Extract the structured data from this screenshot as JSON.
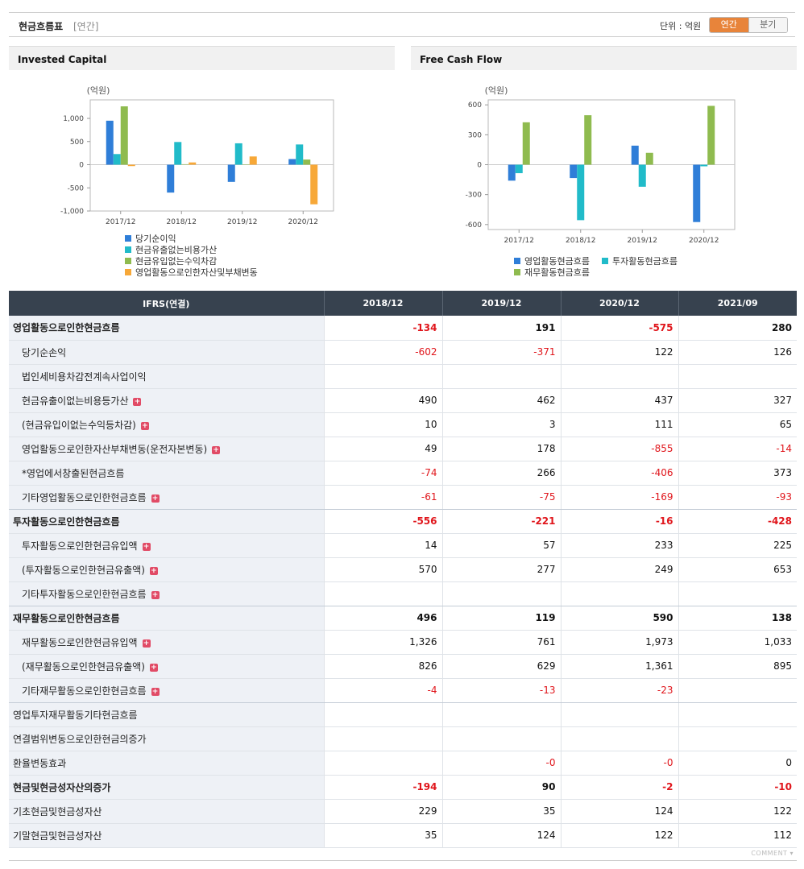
{
  "header": {
    "title": "현금흐름표",
    "period": "[연간]",
    "unit": "단위 : 억원",
    "toggle_annual": "연간",
    "toggle_quarter": "분기"
  },
  "charts": {
    "invested": {
      "heading": "Invested Capital"
    },
    "fcf": {
      "heading": "Free Cash Flow"
    }
  },
  "chart_data": [
    {
      "type": "bar",
      "title": "Invested Capital",
      "ylabel": "(억원)",
      "categories": [
        "2017/12",
        "2018/12",
        "2019/12",
        "2020/12"
      ],
      "yticks": [
        1000,
        500,
        0,
        -500,
        -1000
      ],
      "ytick_labels": [
        "1,000",
        "500",
        "0",
        "-500",
        "-1,000"
      ],
      "ylim": [
        -1000,
        1400
      ],
      "grid": false,
      "legend": "bottom",
      "series": [
        {
          "name": "당기순이익",
          "color": "#2f7ed8",
          "values": [
            950,
            -602,
            -371,
            122
          ]
        },
        {
          "name": "현금유출없는비용가산",
          "color": "#21bbc9",
          "values": [
            230,
            490,
            462,
            437
          ]
        },
        {
          "name": "현금유입없는수익차감",
          "color": "#8fbb4f",
          "values": [
            1260,
            10,
            3,
            111
          ]
        },
        {
          "name": "영업활동으로인한자산및부채변동",
          "color": "#f7a838",
          "values": [
            -30,
            49,
            178,
            -855
          ]
        }
      ]
    },
    {
      "type": "bar",
      "title": "Free Cash Flow",
      "ylabel": "(억원)",
      "categories": [
        "2017/12",
        "2018/12",
        "2019/12",
        "2020/12"
      ],
      "yticks": [
        600,
        300,
        0,
        -300,
        -600
      ],
      "ytick_labels": [
        "600",
        "300",
        "0",
        "-300",
        "-600"
      ],
      "ylim": [
        -650,
        650
      ],
      "grid": false,
      "legend": "bottom",
      "series": [
        {
          "name": "영업활동현금흐름",
          "color": "#2f7ed8",
          "values": [
            -160,
            -134,
            191,
            -575
          ]
        },
        {
          "name": "투자활동현금흐름",
          "color": "#21bbc9",
          "values": [
            -85,
            -556,
            -221,
            -16
          ]
        },
        {
          "name": "재무활동현금흐름",
          "color": "#8fbb4f",
          "values": [
            425,
            496,
            119,
            590
          ]
        }
      ]
    }
  ],
  "table": {
    "header": [
      "IFRS(연결)",
      "2018/12",
      "2019/12",
      "2020/12",
      "2021/09"
    ],
    "rows": [
      {
        "label": "영업활동으로인한현금흐름",
        "level": 0,
        "bold": true,
        "plus": false,
        "values": [
          "-134",
          "191",
          "-575",
          "280"
        ]
      },
      {
        "label": "당기순손익",
        "level": 1,
        "bold": false,
        "plus": false,
        "values": [
          "-602",
          "-371",
          "122",
          "126"
        ]
      },
      {
        "label": "법인세비용차감전계속사업이익",
        "level": 1,
        "bold": false,
        "plus": false,
        "values": [
          "",
          "",
          "",
          ""
        ]
      },
      {
        "label": "현금유출이없는비용등가산",
        "level": 1,
        "bold": false,
        "plus": true,
        "values": [
          "490",
          "462",
          "437",
          "327"
        ]
      },
      {
        "label": "(현금유입이없는수익등차감)",
        "level": 1,
        "bold": false,
        "plus": true,
        "values": [
          "10",
          "3",
          "111",
          "65"
        ]
      },
      {
        "label": "영업활동으로인한자산부채변동(운전자본변동)",
        "level": 1,
        "bold": false,
        "plus": true,
        "values": [
          "49",
          "178",
          "-855",
          "-14"
        ]
      },
      {
        "label": "*영업에서창출된현금흐름",
        "level": 1,
        "bold": false,
        "plus": false,
        "values": [
          "-74",
          "266",
          "-406",
          "373"
        ]
      },
      {
        "label": "기타영업활동으로인한현금흐름",
        "level": 1,
        "bold": false,
        "plus": true,
        "values": [
          "-61",
          "-75",
          "-169",
          "-93"
        ]
      },
      {
        "label": "투자활동으로인한현금흐름",
        "level": 0,
        "bold": true,
        "plus": false,
        "values": [
          "-556",
          "-221",
          "-16",
          "-428"
        ]
      },
      {
        "label": "투자활동으로인한현금유입액",
        "level": 1,
        "bold": false,
        "plus": true,
        "values": [
          "14",
          "57",
          "233",
          "225"
        ]
      },
      {
        "label": "(투자활동으로인한현금유출액)",
        "level": 1,
        "bold": false,
        "plus": true,
        "values": [
          "570",
          "277",
          "249",
          "653"
        ]
      },
      {
        "label": "기타투자활동으로인한현금흐름",
        "level": 1,
        "bold": false,
        "plus": true,
        "values": [
          "",
          "",
          "",
          ""
        ]
      },
      {
        "label": "재무활동으로인한현금흐름",
        "level": 0,
        "bold": true,
        "plus": false,
        "values": [
          "496",
          "119",
          "590",
          "138"
        ]
      },
      {
        "label": "재무활동으로인한현금유입액",
        "level": 1,
        "bold": false,
        "plus": true,
        "values": [
          "1,326",
          "761",
          "1,973",
          "1,033"
        ]
      },
      {
        "label": "(재무활동으로인한현금유출액)",
        "level": 1,
        "bold": false,
        "plus": true,
        "values": [
          "826",
          "629",
          "1,361",
          "895"
        ]
      },
      {
        "label": "기타재무활동으로인한현금흐름",
        "level": 1,
        "bold": false,
        "plus": true,
        "values": [
          "-4",
          "-13",
          "-23",
          ""
        ]
      },
      {
        "label": "영업투자재무활동기타현금흐름",
        "level": 0,
        "bold": false,
        "plus": false,
        "values": [
          "",
          "",
          "",
          ""
        ]
      },
      {
        "label": "연결범위변동으로인한현금의증가",
        "level": 0,
        "bold": false,
        "plus": false,
        "values": [
          "",
          "",
          "",
          ""
        ]
      },
      {
        "label": "환율변동효과",
        "level": 0,
        "bold": false,
        "plus": false,
        "values": [
          "",
          "-0",
          "-0",
          "0"
        ]
      },
      {
        "label": "현금및현금성자산의증가",
        "level": 0,
        "bold": true,
        "plus": false,
        "values": [
          "-194",
          "90",
          "-2",
          "-10"
        ]
      },
      {
        "label": "기초현금및현금성자산",
        "level": 0,
        "bold": false,
        "plus": false,
        "values": [
          "229",
          "35",
          "124",
          "122"
        ]
      },
      {
        "label": "기말현금및현금성자산",
        "level": 0,
        "bold": false,
        "plus": false,
        "values": [
          "35",
          "124",
          "122",
          "112"
        ]
      }
    ]
  },
  "footer": {
    "comment": "COMMENT ▾"
  },
  "colors": {
    "accent": "#e8843a",
    "header_bg": "#37424f",
    "negative": "#e0151b",
    "label_bg": "#eef1f6"
  }
}
